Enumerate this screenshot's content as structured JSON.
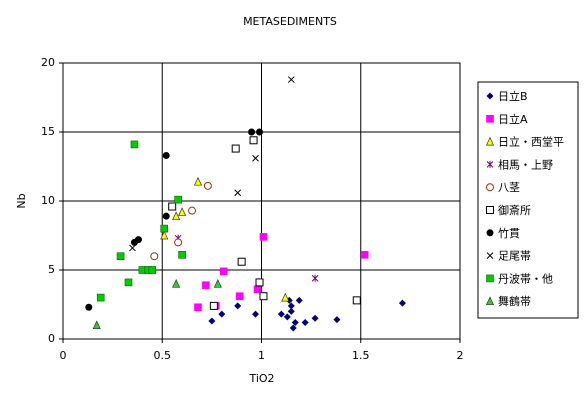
{
  "chart_data": {
    "type": "scatter",
    "title": "METASEDIMENTS",
    "x_label": "TiO2",
    "y_label": "Nb",
    "xlim": [
      0,
      2
    ],
    "xticks": [
      0,
      0.5,
      1,
      1.5,
      2
    ],
    "ylim": [
      0,
      20
    ],
    "yticks": [
      0,
      5,
      10,
      15,
      20
    ],
    "grid": true,
    "legend": "right",
    "series": [
      {
        "name": "日立B",
        "color": "#000080",
        "marker": "diamond",
        "x": [
          0.75,
          0.8,
          0.88,
          0.97,
          1.1,
          1.13,
          1.15,
          1.14,
          1.16,
          1.17,
          1.19,
          1.22,
          1.27,
          1.38,
          1.71,
          1.15
        ],
        "values": [
          1.3,
          1.8,
          2.4,
          1.8,
          1.8,
          1.6,
          2.0,
          2.8,
          0.8,
          1.2,
          2.8,
          1.2,
          1.5,
          1.4,
          2.6,
          2.4
        ]
      },
      {
        "name": "日立A",
        "color": "#ff00ff",
        "marker": "square",
        "x": [
          0.68,
          0.72,
          0.77,
          0.81,
          0.89,
          0.98,
          1.01,
          1.52
        ],
        "values": [
          2.3,
          3.9,
          2.4,
          4.9,
          3.1,
          3.6,
          7.4,
          6.1
        ]
      },
      {
        "name": "日立・西堂平",
        "color": "#ffff00",
        "marker": "triangle",
        "x": [
          0.51,
          0.57,
          0.6,
          0.68,
          1.12
        ],
        "values": [
          7.5,
          8.9,
          9.2,
          11.4,
          3.0
        ]
      },
      {
        "name": "相馬・上野",
        "color": "#800080",
        "marker": "asterisk",
        "x": [
          0.58,
          1.27
        ],
        "values": [
          7.3,
          4.4
        ]
      },
      {
        "name": "八茎",
        "color": "#993300",
        "marker": "circle-open",
        "x": [
          0.46,
          0.58,
          0.65,
          0.73
        ],
        "values": [
          6.0,
          7.0,
          9.3,
          11.1
        ]
      },
      {
        "name": "御斎所",
        "color": "#000000",
        "marker": "square-open",
        "x": [
          0.55,
          0.87,
          0.9,
          0.96,
          0.99,
          1.01,
          1.48,
          0.76
        ],
        "values": [
          9.6,
          13.8,
          5.6,
          14.4,
          4.1,
          3.1,
          2.8,
          2.4
        ]
      },
      {
        "name": "竹貫",
        "color": "#000000",
        "marker": "circle",
        "x": [
          0.13,
          0.36,
          0.38,
          0.52,
          0.52,
          0.95,
          0.99
        ],
        "values": [
          2.3,
          7.0,
          7.2,
          13.3,
          8.9,
          15.0,
          15.0
        ]
      },
      {
        "name": "足尾帯",
        "color": "#000000",
        "marker": "x",
        "x": [
          0.35,
          0.88,
          0.97,
          1.15
        ],
        "values": [
          6.6,
          10.6,
          13.1,
          18.8
        ]
      },
      {
        "name": "丹波帯・他",
        "color": "#00cc00",
        "marker": "square",
        "x": [
          0.19,
          0.29,
          0.33,
          0.36,
          0.4,
          0.43,
          0.45,
          0.51,
          0.58,
          0.6
        ],
        "values": [
          3.0,
          6.0,
          4.1,
          14.1,
          5.0,
          5.0,
          5.0,
          8.0,
          10.1,
          6.1
        ]
      },
      {
        "name": "舞鶴帯",
        "color": "#33cc33",
        "marker": "triangle",
        "x": [
          0.17,
          0.57,
          0.78
        ],
        "values": [
          1.0,
          4.0,
          4.0
        ]
      }
    ]
  }
}
